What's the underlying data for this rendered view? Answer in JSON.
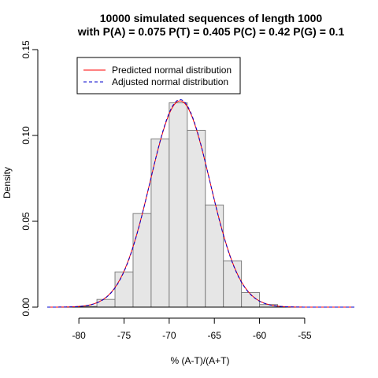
{
  "chart_data": {
    "type": "bar",
    "title_lines": [
      "10000 simulated sequences of length 1000",
      "with P(A) = 0.075 P(T) = 0.405 P(C) = 0.42 P(G) = 0.1"
    ],
    "xlabel": "% (A-T)/(A+T)",
    "ylabel": "Density",
    "xlim": [
      -83.5,
      -49.5
    ],
    "ylim": [
      0,
      0.15
    ],
    "x_ticks": [
      -80,
      -75,
      -70,
      -65,
      -60,
      -55
    ],
    "x_tick_labels": [
      "-80",
      "-75",
      "-70",
      "-65",
      "-60",
      "-55"
    ],
    "y_ticks": [
      0.0,
      0.05,
      0.1,
      0.15
    ],
    "y_tick_labels": [
      "0.00",
      "0.05",
      "0.10",
      "0.15"
    ],
    "bins": [
      {
        "start": -80,
        "end": -78,
        "density": 0.0005
      },
      {
        "start": -78,
        "end": -76,
        "density": 0.0045
      },
      {
        "start": -76,
        "end": -74,
        "density": 0.0205
      },
      {
        "start": -74,
        "end": -72,
        "density": 0.0545
      },
      {
        "start": -72,
        "end": -70,
        "density": 0.098
      },
      {
        "start": -70,
        "end": -68,
        "density": 0.119
      },
      {
        "start": -68,
        "end": -66,
        "density": 0.103
      },
      {
        "start": -66,
        "end": -64,
        "density": 0.0595
      },
      {
        "start": -64,
        "end": -62,
        "density": 0.027
      },
      {
        "start": -62,
        "end": -60,
        "density": 0.0085
      },
      {
        "start": -60,
        "end": -58,
        "density": 0.0015
      }
    ],
    "series": [
      {
        "name": "Predicted normal distribution",
        "color": "#ff0000",
        "dash": "solid",
        "mean": -68.8,
        "sd": 3.32
      },
      {
        "name": "Adjusted normal distribution",
        "color": "#0000cd",
        "dash": "dashed",
        "mean": -68.8,
        "sd": 3.3
      }
    ],
    "bar_fill": "#e6e6e6",
    "bar_stroke": "#808080",
    "legend_position": "top-left"
  }
}
